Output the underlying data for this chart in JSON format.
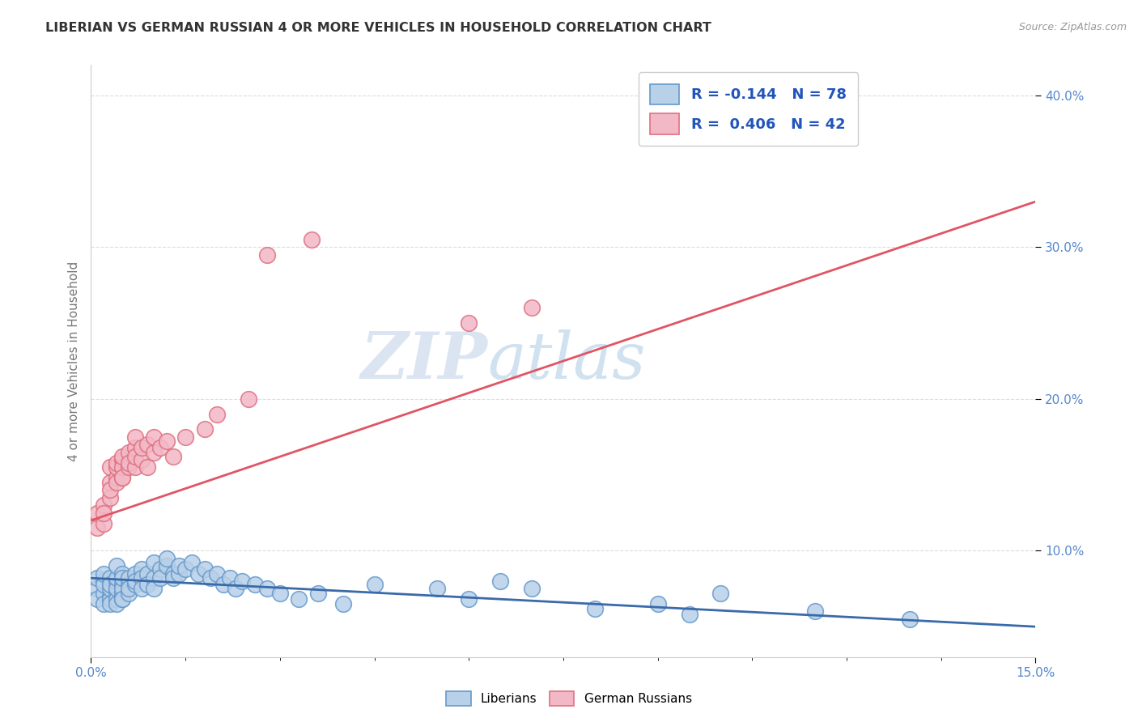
{
  "title": "LIBERIAN VS GERMAN RUSSIAN 4 OR MORE VEHICLES IN HOUSEHOLD CORRELATION CHART",
  "source": "Source: ZipAtlas.com",
  "ylabel": "4 or more Vehicles in Household",
  "watermark_zip": "ZIP",
  "watermark_atlas": "atlas",
  "legend_blue_label": "R = -0.144   N = 78",
  "legend_pink_label": "R =  0.406   N = 42",
  "legend_blue_color": "#b8d0e8",
  "legend_pink_color": "#f2b8c6",
  "dot_blue_color": "#b8d0e8",
  "dot_pink_color": "#f2b8c6",
  "dot_blue_edge": "#6699cc",
  "dot_pink_edge": "#e07080",
  "line_blue_color": "#3a6aaa",
  "line_pink_color": "#e05565",
  "title_color": "#333333",
  "source_color": "#999999",
  "grid_color": "#dddddd",
  "background_color": "#ffffff",
  "axis_label_color": "#5588cc",
  "xmin": 0.0,
  "xmax": 0.15,
  "ymin": 0.03,
  "ymax": 0.42,
  "blue_line_x0": 0.0,
  "blue_line_y0": 0.082,
  "blue_line_x1": 0.15,
  "blue_line_y1": 0.05,
  "pink_line_x0": 0.0,
  "pink_line_y0": 0.12,
  "pink_line_x1": 0.15,
  "pink_line_y1": 0.33,
  "blue_x": [
    0.001,
    0.001,
    0.001,
    0.002,
    0.002,
    0.002,
    0.002,
    0.002,
    0.003,
    0.003,
    0.003,
    0.003,
    0.003,
    0.003,
    0.004,
    0.004,
    0.004,
    0.004,
    0.004,
    0.004,
    0.004,
    0.005,
    0.005,
    0.005,
    0.005,
    0.005,
    0.005,
    0.005,
    0.006,
    0.006,
    0.006,
    0.006,
    0.007,
    0.007,
    0.007,
    0.008,
    0.008,
    0.008,
    0.009,
    0.009,
    0.01,
    0.01,
    0.01,
    0.011,
    0.011,
    0.012,
    0.012,
    0.013,
    0.013,
    0.014,
    0.014,
    0.015,
    0.016,
    0.017,
    0.018,
    0.019,
    0.02,
    0.021,
    0.022,
    0.023,
    0.024,
    0.026,
    0.028,
    0.03,
    0.033,
    0.036,
    0.04,
    0.045,
    0.055,
    0.06,
    0.065,
    0.07,
    0.08,
    0.09,
    0.095,
    0.1,
    0.115,
    0.13
  ],
  "blue_y": [
    0.075,
    0.068,
    0.082,
    0.072,
    0.08,
    0.065,
    0.078,
    0.085,
    0.07,
    0.068,
    0.075,
    0.082,
    0.065,
    0.078,
    0.072,
    0.08,
    0.068,
    0.075,
    0.082,
    0.065,
    0.09,
    0.078,
    0.072,
    0.068,
    0.085,
    0.075,
    0.082,
    0.068,
    0.078,
    0.072,
    0.082,
    0.075,
    0.085,
    0.078,
    0.08,
    0.088,
    0.082,
    0.075,
    0.085,
    0.078,
    0.092,
    0.082,
    0.075,
    0.088,
    0.082,
    0.09,
    0.095,
    0.085,
    0.082,
    0.085,
    0.09,
    0.088,
    0.092,
    0.085,
    0.088,
    0.082,
    0.085,
    0.078,
    0.082,
    0.075,
    0.08,
    0.078,
    0.075,
    0.072,
    0.068,
    0.072,
    0.065,
    0.078,
    0.075,
    0.068,
    0.08,
    0.075,
    0.062,
    0.065,
    0.058,
    0.072,
    0.06,
    0.055
  ],
  "pink_x": [
    0.001,
    0.001,
    0.002,
    0.002,
    0.002,
    0.003,
    0.003,
    0.003,
    0.003,
    0.004,
    0.004,
    0.004,
    0.004,
    0.005,
    0.005,
    0.005,
    0.005,
    0.005,
    0.006,
    0.006,
    0.006,
    0.007,
    0.007,
    0.007,
    0.007,
    0.008,
    0.008,
    0.009,
    0.009,
    0.01,
    0.01,
    0.011,
    0.012,
    0.013,
    0.015,
    0.018,
    0.02,
    0.025,
    0.028,
    0.035,
    0.06,
    0.07
  ],
  "pink_y": [
    0.115,
    0.125,
    0.13,
    0.118,
    0.125,
    0.145,
    0.135,
    0.14,
    0.155,
    0.148,
    0.155,
    0.145,
    0.158,
    0.148,
    0.16,
    0.155,
    0.148,
    0.162,
    0.155,
    0.165,
    0.158,
    0.168,
    0.155,
    0.162,
    0.175,
    0.16,
    0.168,
    0.17,
    0.155,
    0.165,
    0.175,
    0.168,
    0.172,
    0.162,
    0.175,
    0.18,
    0.19,
    0.2,
    0.295,
    0.305,
    0.25,
    0.26
  ]
}
